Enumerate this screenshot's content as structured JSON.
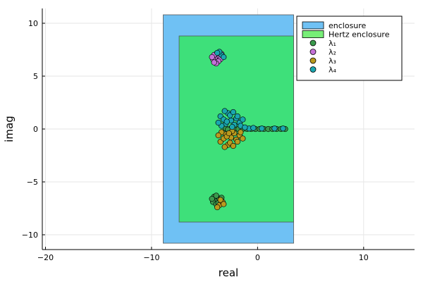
{
  "chart_data": {
    "type": "scatter",
    "xlabel": "real",
    "ylabel": "imag",
    "xlim": [
      -20.3,
      14.8
    ],
    "ylim": [
      -11.4,
      11.4
    ],
    "xticks": [
      -20,
      -10,
      0,
      10
    ],
    "xtick_labels": [
      "−20",
      "−10",
      "0",
      "10"
    ],
    "yticks": [
      -10,
      -5,
      0,
      5,
      10
    ],
    "ytick_labels": [
      "−10",
      "−5",
      "0",
      "5",
      "10"
    ],
    "grid": true,
    "legend_position": "top-right",
    "regions": [
      {
        "name": "enclosure",
        "color": "#6fc1f4",
        "xmin": -8.9,
        "xmax": 3.4,
        "ymin": -10.8,
        "ymax": 10.8
      },
      {
        "name": "Hertz enclosure",
        "color": "#3ee07a",
        "legend_color": "#77ee77",
        "xmin": -7.4,
        "xmax": 3.4,
        "ymin": -8.8,
        "ymax": 8.8
      }
    ],
    "series": [
      {
        "name": "λ₁",
        "color": "#3a9a4c",
        "points": [
          [
            -3.8,
            -6.5
          ],
          [
            -4.0,
            -6.8
          ],
          [
            -3.6,
            -6.6
          ],
          [
            -4.2,
            -6.9
          ],
          [
            -3.9,
            -7.1
          ],
          [
            -3.5,
            -6.8
          ],
          [
            -4.1,
            -6.4
          ],
          [
            -3.7,
            -7.0
          ],
          [
            -4.3,
            -6.6
          ],
          [
            -3.4,
            -6.5
          ],
          [
            -3.9,
            -6.3
          ],
          [
            -2.6,
            0.0
          ],
          [
            -2.2,
            0.0
          ],
          [
            -1.8,
            0.0
          ],
          [
            -1.4,
            0.0
          ],
          [
            -1.0,
            0.0
          ],
          [
            -0.6,
            0.0
          ],
          [
            -0.2,
            0.0
          ],
          [
            0.2,
            0.0
          ],
          [
            0.6,
            0.0
          ],
          [
            1.0,
            0.0
          ],
          [
            1.4,
            0.0
          ],
          [
            1.8,
            0.0
          ],
          [
            2.2,
            0.0
          ],
          [
            2.6,
            0.0
          ],
          [
            -3.0,
            0.05
          ],
          [
            -2.8,
            -0.05
          ]
        ]
      },
      {
        "name": "λ₂",
        "color": "#c572d8",
        "points": [
          [
            -3.8,
            6.5
          ],
          [
            -4.0,
            6.8
          ],
          [
            -3.6,
            6.9
          ],
          [
            -4.2,
            6.6
          ],
          [
            -3.9,
            7.1
          ],
          [
            -3.5,
            6.6
          ],
          [
            -4.1,
            7.0
          ],
          [
            -3.7,
            6.4
          ],
          [
            -4.3,
            6.8
          ],
          [
            -3.4,
            7.1
          ],
          [
            -3.9,
            6.2
          ],
          [
            -4.1,
            6.3
          ]
        ]
      },
      {
        "name": "λ₃",
        "color": "#b99a1e",
        "points": [
          [
            -3.6,
            -7.2
          ],
          [
            -3.3,
            -6.9
          ],
          [
            -3.8,
            -7.4
          ],
          [
            -3.5,
            -6.7
          ],
          [
            -3.2,
            -7.1
          ],
          [
            -3.0,
            -0.5
          ],
          [
            -2.5,
            -0.8
          ],
          [
            -2.0,
            -1.0
          ],
          [
            -3.5,
            -1.2
          ],
          [
            -2.8,
            -1.5
          ],
          [
            -2.2,
            -0.4
          ],
          [
            -3.2,
            -0.9
          ],
          [
            -1.7,
            -0.6
          ],
          [
            -2.6,
            -1.3
          ],
          [
            -3.4,
            -0.3
          ],
          [
            -1.4,
            -0.9
          ],
          [
            -2.9,
            -0.7
          ],
          [
            -2.3,
            -1.6
          ],
          [
            -3.7,
            -0.6
          ],
          [
            -1.9,
            -1.2
          ],
          [
            -2.4,
            -0.2
          ],
          [
            -3.1,
            -1.7
          ],
          [
            -1.6,
            -0.3
          ],
          [
            -2.7,
            -0.4
          ]
        ]
      },
      {
        "name": "λ₄",
        "color": "#1aa7b0",
        "points": [
          [
            -3.4,
            7.0
          ],
          [
            -3.6,
            7.3
          ],
          [
            -3.2,
            6.8
          ],
          [
            -3.8,
            7.2
          ],
          [
            -3.0,
            0.5
          ],
          [
            -2.5,
            0.8
          ],
          [
            -2.0,
            1.0
          ],
          [
            -3.5,
            1.2
          ],
          [
            -2.8,
            1.5
          ],
          [
            -2.2,
            0.4
          ],
          [
            -3.2,
            0.9
          ],
          [
            -1.7,
            0.6
          ],
          [
            -2.6,
            1.3
          ],
          [
            -3.4,
            0.3
          ],
          [
            -1.4,
            0.9
          ],
          [
            -2.9,
            0.7
          ],
          [
            -2.3,
            1.6
          ],
          [
            -3.7,
            0.6
          ],
          [
            -1.9,
            1.2
          ],
          [
            -2.4,
            0.2
          ],
          [
            -3.1,
            1.7
          ],
          [
            -1.6,
            0.3
          ],
          [
            -0.8,
            0.05
          ],
          [
            0.4,
            0.05
          ],
          [
            1.6,
            0.05
          ],
          [
            2.4,
            0.05
          ],
          [
            -1.2,
            0.15
          ],
          [
            -0.4,
            0.1
          ]
        ]
      }
    ]
  }
}
